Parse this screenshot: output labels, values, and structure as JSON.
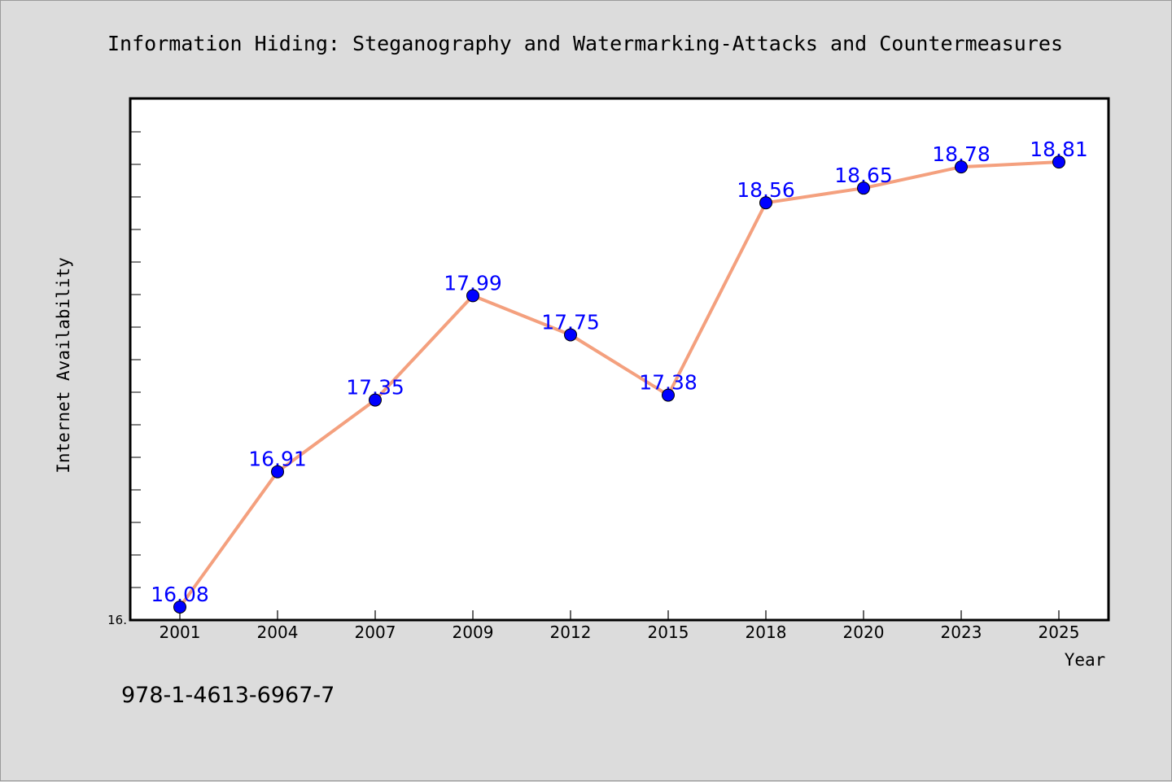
{
  "chart_data": {
    "type": "line",
    "title": "Information Hiding: Steganography and Watermarking-Attacks and Countermeasures",
    "xlabel": "Year",
    "ylabel": "Internet Availability",
    "categories": [
      "2001",
      "2004",
      "2007",
      "2009",
      "2012",
      "2015",
      "2018",
      "2020",
      "2023",
      "2025"
    ],
    "series": [
      {
        "values": [
          16.08,
          16.91,
          17.35,
          17.99,
          17.75,
          17.38,
          18.56,
          18.65,
          18.78,
          18.81
        ]
      }
    ],
    "data_labels": [
      "16.08",
      "16.91",
      "17.35",
      "17.99",
      "17.75",
      "17.38",
      "18.56",
      "18.65",
      "18.78",
      "18.81"
    ],
    "ylim": [
      16.0,
      19.2
    ],
    "yticks": [
      {
        "value": 16.0,
        "label": "16."
      }
    ],
    "grid": false,
    "line_color": "#f4a07e",
    "marker_color": "#0000ff",
    "label_color": "#0000ff"
  },
  "footer": {
    "isbn": "978-1-4613-6967-7"
  }
}
